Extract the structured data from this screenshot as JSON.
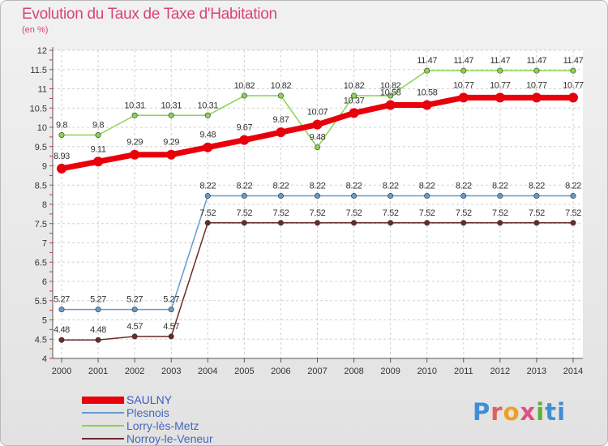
{
  "title": "Evolution du Taux de Taxe d'Habitation",
  "unit": "(en %)",
  "logo": "Proxiti",
  "chart_data": {
    "type": "line",
    "x": [
      "2000",
      "2001",
      "2002",
      "2003",
      "2004",
      "2005",
      "2006",
      "2007",
      "2008",
      "2009",
      "2010",
      "2011",
      "2012",
      "2013",
      "2014"
    ],
    "ylim": [
      4,
      12
    ],
    "yticks": [
      "4",
      "4.5",
      "5",
      "5.5",
      "6",
      "6.5",
      "7",
      "7.5",
      "8",
      "8.5",
      "9",
      "9.5",
      "10",
      "10.5",
      "11",
      "11.5",
      "12"
    ],
    "grid": true,
    "legend_position": "bottom-left",
    "series": [
      {
        "name": "SAULNY",
        "color": "#e8000b",
        "width": 7,
        "values": [
          8.93,
          9.11,
          9.29,
          9.29,
          9.48,
          9.67,
          9.87,
          10.07,
          10.37,
          10.58,
          10.58,
          10.77,
          10.77,
          10.77,
          10.77
        ],
        "labels": [
          "8.93",
          "9.11",
          "9.29",
          "9.29",
          "9.48",
          "9.67",
          "9.87",
          "10.07",
          "10.37",
          "10.58",
          "10.58",
          "10.77",
          "10.77",
          "10.77",
          "10.77"
        ]
      },
      {
        "name": "Plesnois",
        "color": "#6699cc",
        "width": 1.5,
        "values": [
          5.27,
          5.27,
          5.27,
          5.27,
          8.22,
          8.22,
          8.22,
          8.22,
          8.22,
          8.22,
          8.22,
          8.22,
          8.22,
          8.22,
          8.22
        ],
        "labels": [
          "5.27",
          "5.27",
          "5.27",
          "5.27",
          "8.22",
          "8.22",
          "8.22",
          "8.22",
          "8.22",
          "8.22",
          "8.22",
          "8.22",
          "8.22",
          "8.22",
          "8.22"
        ]
      },
      {
        "name": "Lorry-lès-Metz",
        "color": "#88d44c",
        "width": 1.5,
        "values": [
          9.8,
          9.8,
          10.31,
          10.31,
          10.31,
          10.82,
          10.82,
          9.48,
          10.82,
          10.82,
          11.47,
          11.47,
          11.47,
          11.47,
          11.47
        ],
        "labels": [
          "9.8",
          "9.8",
          "10.31",
          "10.31",
          "10.31",
          "10.82",
          "10.82",
          "9.48",
          "10.82",
          "10.82",
          "11.47",
          "11.47",
          "11.47",
          "11.47",
          "11.47"
        ]
      },
      {
        "name": "Norroy-le-Veneur",
        "color": "#6b2a2a",
        "width": 1.5,
        "values": [
          4.48,
          4.48,
          4.57,
          4.57,
          7.52,
          7.52,
          7.52,
          7.52,
          7.52,
          7.52,
          7.52,
          7.52,
          7.52,
          7.52,
          7.52
        ],
        "labels": [
          "4.48",
          "4.48",
          "4.57",
          "4.57",
          "7.52",
          "7.52",
          "7.52",
          "7.52",
          "7.52",
          "7.52",
          "7.52",
          "7.52",
          "7.52",
          "7.52",
          "7.52"
        ]
      }
    ]
  },
  "colors": {
    "title": "#d9437a",
    "grid": "#d0d0d0",
    "axis": "#555555"
  }
}
